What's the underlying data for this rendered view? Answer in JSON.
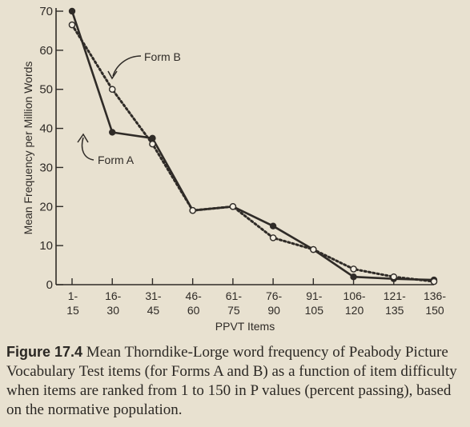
{
  "chart_data": {
    "type": "line",
    "categories": [
      [
        "1-",
        "15"
      ],
      [
        "16-",
        "30"
      ],
      [
        "31-",
        "45"
      ],
      [
        "46-",
        "60"
      ],
      [
        "61-",
        "75"
      ],
      [
        "76-",
        "90"
      ],
      [
        "91-",
        "105"
      ],
      [
        "106-",
        "120"
      ],
      [
        "121-",
        "135"
      ],
      [
        "136-",
        "150"
      ]
    ],
    "series": [
      {
        "name": "Form A",
        "style": "solid",
        "marker": "filled",
        "color": "#2f2b27",
        "values": [
          70,
          39,
          37.5,
          19,
          20,
          15,
          9,
          2,
          1.5,
          1.2
        ]
      },
      {
        "name": "Form B",
        "style": "dotted",
        "marker": "open",
        "color": "#2f2b27",
        "values": [
          66.5,
          50,
          36,
          19,
          20,
          12,
          9,
          4,
          2,
          0.8
        ]
      }
    ],
    "xlabel": "PPVT Items",
    "ylabel": "Mean Frequency per Million Words",
    "ylim": [
      0,
      70
    ],
    "yticks": [
      0,
      10,
      20,
      30,
      40,
      50,
      60,
      70
    ],
    "grid": false,
    "legend": "inline annotations"
  },
  "caption": {
    "label": "Figure 17.4",
    "text": " Mean Thorndike-Lorge word frequency of Peabody Picture Vocabulary Test items (for Forms A and B) as a function of item difficulty when items are ranked from 1 to 150 in P values (percent passing), based on the normative population."
  },
  "colors": {
    "background": "#e8e1d0",
    "ink": "#2f2b27"
  }
}
